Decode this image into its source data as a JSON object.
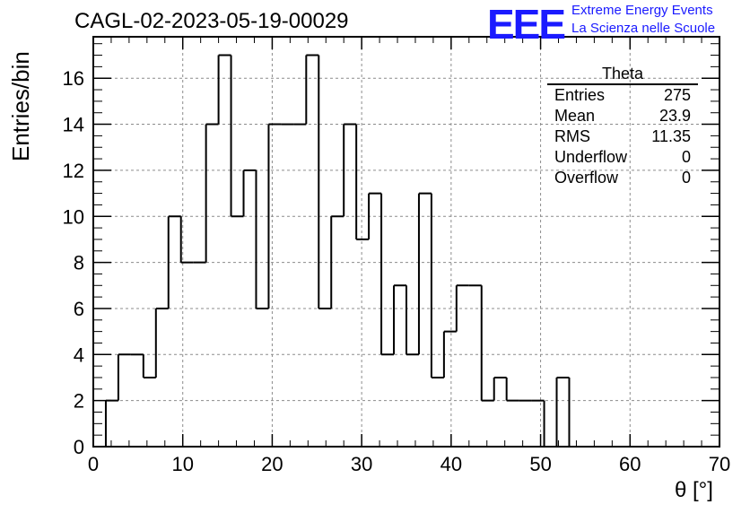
{
  "header": {
    "title": "CAGL-02-2023-05-19-00029",
    "logo_text": "EEE",
    "org_line1": "Extreme Energy Events",
    "org_line2": "La Scienza nelle Scuole"
  },
  "stats": {
    "title": "Theta",
    "rows": [
      {
        "label": "Entries",
        "value": "275"
      },
      {
        "label": "Mean",
        "value": "23.9"
      },
      {
        "label": "RMS",
        "value": "11.35"
      },
      {
        "label": "Underflow",
        "value": "0"
      },
      {
        "label": "Overflow",
        "value": "0"
      }
    ]
  },
  "colors": {
    "line": "#000000",
    "grid": "#8c8c8c",
    "logo": "#1a1aff"
  },
  "chart_data": {
    "type": "bar",
    "title": "CAGL-02-2023-05-19-00029",
    "xlabel": "θ [°]",
    "ylabel": "Entries/bin",
    "xlim": [
      0,
      70
    ],
    "ylim": [
      0,
      17.8
    ],
    "grid": true,
    "bin_width": 1.4,
    "bin_edges": [
      0,
      1.4,
      2.8,
      4.2,
      5.6,
      7.0,
      8.4,
      9.8,
      11.2,
      12.6,
      14.0,
      15.4,
      16.8,
      18.2,
      19.6,
      21.0,
      22.4,
      23.8,
      25.2,
      26.6,
      28.0,
      29.4,
      30.8,
      32.2,
      33.6,
      35.0,
      36.4,
      37.8,
      39.2,
      40.6,
      42.0,
      43.4,
      44.8,
      46.2,
      47.6,
      49.0,
      50.4,
      51.8,
      53.2,
      54.6,
      56.0,
      57.4,
      58.8,
      60.2,
      61.6,
      63.0,
      64.4,
      65.8,
      67.2,
      68.6,
      70.0
    ],
    "values": [
      0,
      2,
      4,
      4,
      3,
      6,
      10,
      8,
      8,
      14,
      17,
      10,
      12,
      6,
      14,
      14,
      14,
      17,
      6,
      10,
      14,
      9,
      11,
      4,
      7,
      4,
      11,
      3,
      5,
      7,
      7,
      2,
      3,
      2,
      2,
      2,
      0,
      3,
      0,
      0,
      0,
      0,
      0,
      0,
      0,
      0,
      0,
      0,
      0,
      0
    ],
    "x_ticks": [
      0,
      10,
      20,
      30,
      40,
      50,
      60,
      70
    ],
    "y_ticks": [
      0,
      2,
      4,
      6,
      8,
      10,
      12,
      14,
      16
    ],
    "legend": "stats box top-right"
  }
}
